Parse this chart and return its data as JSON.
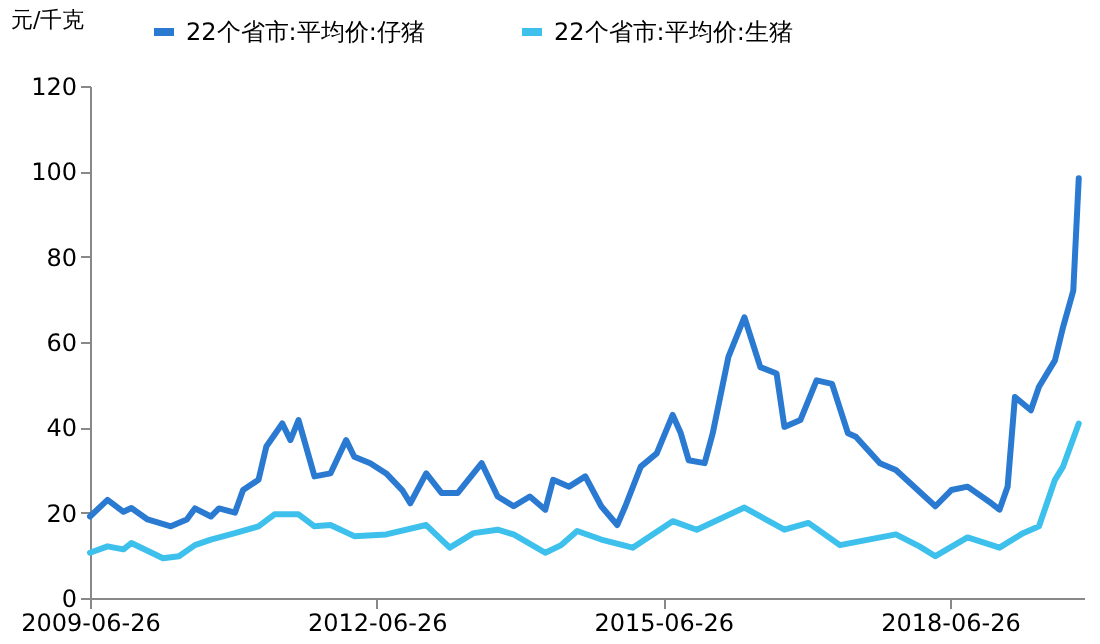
{
  "chart_data": {
    "type": "line",
    "ylabel": "元/千克",
    "legend": "top",
    "xlim": [
      "2009-06-26",
      "2019-11-20"
    ],
    "xticks": [
      "2009-06-26",
      "2012-06-26",
      "2015-06-26",
      "2018-06-26"
    ],
    "ylim": [
      0,
      120
    ],
    "yticks": [
      0,
      20,
      40,
      60,
      80,
      100,
      120
    ],
    "grid": false,
    "marker": "none",
    "line_style": "solid",
    "series": [
      {
        "name": "22个省市:平均价:仔猪",
        "color": "#2a7ad2",
        "x": [
          "2009-06-26",
          "2009-09",
          "2009-11",
          "2009-12",
          "2010-02",
          "2010-05",
          "2010-07",
          "2010-08",
          "2010-10",
          "2010-11",
          "2011-01",
          "2011-02",
          "2011-04",
          "2011-05",
          "2011-07",
          "2011-08",
          "2011-09",
          "2011-11",
          "2012-01",
          "2012-03",
          "2012-04",
          "2012-06",
          "2012-08",
          "2012-10",
          "2012-11",
          "2013-01",
          "2013-03",
          "2013-05",
          "2013-08",
          "2013-10",
          "2013-12",
          "2014-02",
          "2014-04",
          "2014-05",
          "2014-07",
          "2014-09",
          "2014-11",
          "2015-01",
          "2015-02",
          "2015-04",
          "2015-06",
          "2015-08",
          "2015-09",
          "2015-10",
          "2015-12",
          "2016-01",
          "2016-03",
          "2016-05",
          "2016-07",
          "2016-09",
          "2016-10",
          "2016-12",
          "2017-02",
          "2017-04",
          "2017-06",
          "2017-07",
          "2017-10",
          "2017-12",
          "2018-05",
          "2018-07",
          "2018-09",
          "2018-12",
          "2019-01",
          "2019-02",
          "2019-03",
          "2019-05",
          "2019-06",
          "2019-08",
          "2019-09",
          "2019-10-10",
          "2019-10-31"
        ],
        "values": [
          19.1,
          23,
          20.2,
          21.1,
          18.4,
          16.8,
          18.4,
          21,
          19.1,
          21,
          20,
          25.3,
          27.7,
          35.5,
          40.9,
          37,
          41.7,
          28.5,
          29.2,
          37,
          33.1,
          31.6,
          29.2,
          25.3,
          22.2,
          29.2,
          24.6,
          24.6,
          31.6,
          23.8,
          21.5,
          23.8,
          20.7,
          27.7,
          26.1,
          28.5,
          21.5,
          17.1,
          21.5,
          30.8,
          33.9,
          42.9,
          38.6,
          32.3,
          31.6,
          38.6,
          56.5,
          65.8,
          54.1,
          52.6,
          40.1,
          41.7,
          51,
          50.2,
          38.6,
          37.8,
          31.6,
          30,
          21.5,
          25.3,
          26.1,
          22.2,
          20.7,
          26.1,
          47.1,
          44,
          49.5,
          55.7,
          63.5,
          72,
          98.4
        ]
      },
      {
        "name": "22个省市:平均价:生猪",
        "color": "#3ec0ec",
        "x": [
          "2009-06-26",
          "2009-09",
          "2009-11",
          "2009-12",
          "2010-04",
          "2010-06",
          "2010-08",
          "2010-10",
          "2011-01",
          "2011-04",
          "2011-06",
          "2011-09",
          "2011-11",
          "2012-01",
          "2012-04",
          "2012-08",
          "2013-01",
          "2013-04",
          "2013-07",
          "2013-10",
          "2013-12",
          "2014-04",
          "2014-06",
          "2014-08",
          "2014-11",
          "2015-03",
          "2015-08",
          "2015-11",
          "2016-05",
          "2016-10",
          "2017-01",
          "2017-05",
          "2017-12",
          "2018-03",
          "2018-05",
          "2018-09",
          "2019-01",
          "2019-04",
          "2019-06",
          "2019-08",
          "2019-09",
          "2019-10-31"
        ],
        "values": [
          10.6,
          12.1,
          11.4,
          12.9,
          9.3,
          9.8,
          12.4,
          13.7,
          15.2,
          16.8,
          19.6,
          19.6,
          16.8,
          17.1,
          14.5,
          14.9,
          17.1,
          11.8,
          15.2,
          16,
          14.9,
          10.6,
          12.4,
          15.7,
          13.7,
          11.8,
          18,
          16,
          21.2,
          16,
          17.6,
          12.4,
          14.9,
          12.1,
          9.8,
          14.2,
          11.8,
          15.2,
          16.8,
          27.7,
          30.8,
          40.9
        ]
      }
    ]
  }
}
